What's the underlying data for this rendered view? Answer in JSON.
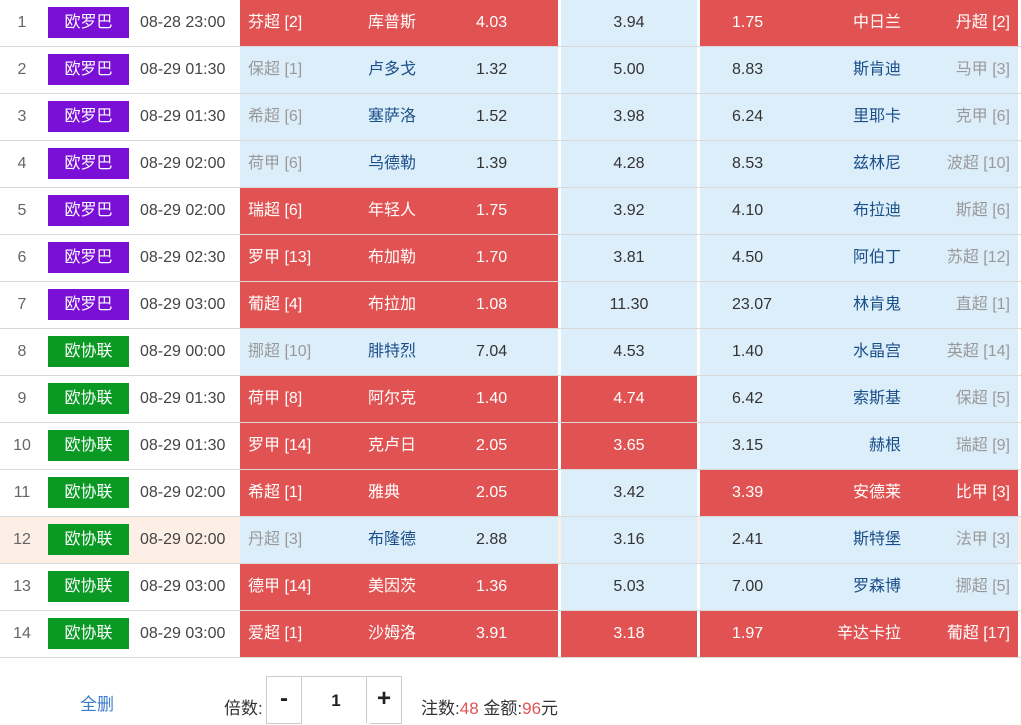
{
  "colors": {
    "red": "#e05352",
    "blue": "#ddeefb",
    "europa": "#7a10d6",
    "conference": "#0a9a24",
    "link": "#3a7bc8"
  },
  "matches": [
    {
      "num": "1",
      "league": "欧罗巴",
      "time": "08-28 23:00",
      "home_rank": "芬超 [2]",
      "home": "库普斯",
      "home_odds": "4.03",
      "draw_odds": "3.94",
      "away_odds": "1.75",
      "away": "中日兰",
      "away_rank": "丹超 [2]"
    },
    {
      "num": "2",
      "league": "欧罗巴",
      "time": "08-29 01:30",
      "home_rank": "保超 [1]",
      "home": "卢多戈",
      "home_odds": "1.32",
      "draw_odds": "5.00",
      "away_odds": "8.83",
      "away": "斯肯迪",
      "away_rank": "马甲 [3]"
    },
    {
      "num": "3",
      "league": "欧罗巴",
      "time": "08-29 01:30",
      "home_rank": "希超 [6]",
      "home": "塞萨洛",
      "home_odds": "1.52",
      "draw_odds": "3.98",
      "away_odds": "6.24",
      "away": "里耶卡",
      "away_rank": "克甲 [6]"
    },
    {
      "num": "4",
      "league": "欧罗巴",
      "time": "08-29 02:00",
      "home_rank": "荷甲 [6]",
      "home": "乌德勒",
      "home_odds": "1.39",
      "draw_odds": "4.28",
      "away_odds": "8.53",
      "away": "兹林尼",
      "away_rank": "波超 [10]"
    },
    {
      "num": "5",
      "league": "欧罗巴",
      "time": "08-29 02:00",
      "home_rank": "瑞超 [6]",
      "home": "年轻人",
      "home_odds": "1.75",
      "draw_odds": "3.92",
      "away_odds": "4.10",
      "away": "布拉迪",
      "away_rank": "斯超 [6]"
    },
    {
      "num": "6",
      "league": "欧罗巴",
      "time": "08-29 02:30",
      "home_rank": "罗甲 [13]",
      "home": "布加勒",
      "home_odds": "1.70",
      "draw_odds": "3.81",
      "away_odds": "4.50",
      "away": "阿伯丁",
      "away_rank": "苏超 [12]"
    },
    {
      "num": "7",
      "league": "欧罗巴",
      "time": "08-29 03:00",
      "home_rank": "葡超 [4]",
      "home": "布拉加",
      "home_odds": "1.08",
      "draw_odds": "11.30",
      "away_odds": "23.07",
      "away": "林肯鬼",
      "away_rank": "直超 [1]"
    },
    {
      "num": "8",
      "league": "欧协联",
      "time": "08-29 00:00",
      "home_rank": "挪超 [10]",
      "home": "腓特烈",
      "home_odds": "7.04",
      "draw_odds": "4.53",
      "away_odds": "1.40",
      "away": "水晶宫",
      "away_rank": "英超 [14]"
    },
    {
      "num": "9",
      "league": "欧协联",
      "time": "08-29 01:30",
      "home_rank": "荷甲 [8]",
      "home": "阿尔克",
      "home_odds": "1.40",
      "draw_odds": "4.74",
      "away_odds": "6.42",
      "away": "索斯基",
      "away_rank": "保超 [5]"
    },
    {
      "num": "10",
      "league": "欧协联",
      "time": "08-29 01:30",
      "home_rank": "罗甲 [14]",
      "home": "克卢日",
      "home_odds": "2.05",
      "draw_odds": "3.65",
      "away_odds": "3.15",
      "away": "赫根",
      "away_rank": "瑞超 [9]"
    },
    {
      "num": "11",
      "league": "欧协联",
      "time": "08-29 02:00",
      "home_rank": "希超 [1]",
      "home": "雅典",
      "home_odds": "2.05",
      "draw_odds": "3.42",
      "away_odds": "3.39",
      "away": "安德莱",
      "away_rank": "比甲 [3]"
    },
    {
      "num": "12",
      "league": "欧协联",
      "time": "08-29 02:00",
      "home_rank": "丹超 [3]",
      "home": "布隆德",
      "home_odds": "2.88",
      "draw_odds": "3.16",
      "away_odds": "2.41",
      "away": "斯特堡",
      "away_rank": "法甲 [3]"
    },
    {
      "num": "13",
      "league": "欧协联",
      "time": "08-29 03:00",
      "home_rank": "德甲 [14]",
      "home": "美因茨",
      "home_odds": "1.36",
      "draw_odds": "5.03",
      "away_odds": "7.00",
      "away": "罗森博",
      "away_rank": "挪超 [5]"
    },
    {
      "num": "14",
      "league": "欧协联",
      "time": "08-29 03:00",
      "home_rank": "爱超 [1]",
      "home": "沙姆洛",
      "home_odds": "3.91",
      "draw_odds": "3.18",
      "away_odds": "1.97",
      "away": "辛达卡拉",
      "away_rank": "葡超 [17]"
    }
  ],
  "selections": [
    {
      "home": "selected",
      "draw": "unselected",
      "away": "selected",
      "row": "plain"
    },
    {
      "home": "unselected",
      "draw": "unselected",
      "away": "unselected",
      "row": "plain"
    },
    {
      "home": "unselected",
      "draw": "unselected",
      "away": "unselected",
      "row": "plain"
    },
    {
      "home": "unselected",
      "draw": "unselected",
      "away": "unselected",
      "row": "plain"
    },
    {
      "home": "selected",
      "draw": "unselected",
      "away": "unselected",
      "row": "plain"
    },
    {
      "home": "selected",
      "draw": "unselected",
      "away": "unselected",
      "row": "plain"
    },
    {
      "home": "selected",
      "draw": "unselected",
      "away": "unselected",
      "row": "plain"
    },
    {
      "home": "unselected",
      "draw": "unselected",
      "away": "unselected",
      "row": "plain"
    },
    {
      "home": "selected",
      "draw": "selected",
      "away": "unselected",
      "row": "plain"
    },
    {
      "home": "selected",
      "draw": "selected",
      "away": "unselected",
      "row": "plain"
    },
    {
      "home": "selected",
      "draw": "unselected",
      "away": "selected",
      "row": "plain"
    },
    {
      "home": "unselected",
      "draw": "unselected",
      "away": "unselected",
      "row": "highlighted"
    },
    {
      "home": "selected",
      "draw": "unselected",
      "away": "unselected",
      "row": "plain"
    },
    {
      "home": "selected",
      "draw": "selected",
      "away": "selected",
      "row": "plain"
    }
  ],
  "footer": {
    "clear_all": "全删",
    "multiplier_label": "倍数:",
    "minus": "-",
    "multiplier_value": "1",
    "plus": "+",
    "bets_label": "注数:",
    "bets_value": "48",
    "amount_label": "金额:",
    "amount_value": "96",
    "amount_unit": "元"
  }
}
